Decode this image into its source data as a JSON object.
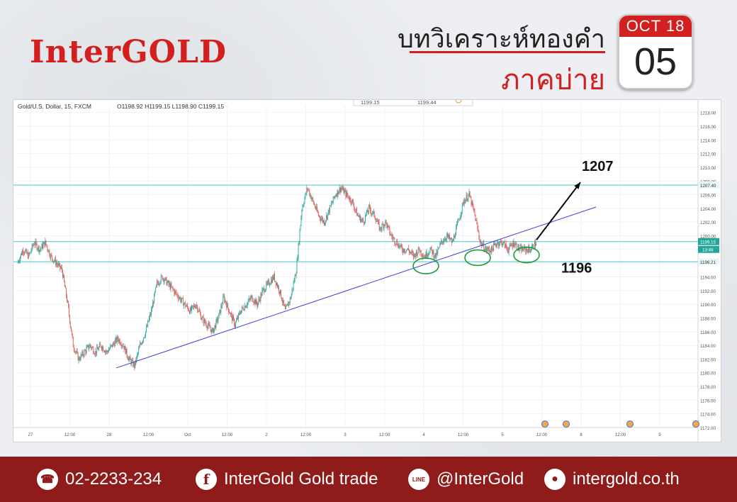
{
  "brand": "InterGOLD",
  "header": {
    "title": "บทวิเคราะห์ทองคำ",
    "subtitle": "ภาคบ่าย",
    "date_month": "OCT 18",
    "date_day": "05"
  },
  "chart_info": {
    "symbol_line": "Gold/U.S. Dollar, 15, FXCM",
    "ohlc": "O1198.92 H1199.15 L1198.90 C1199.15",
    "box_left": "1199.15",
    "box_right": "1199.44",
    "current_price_tag": "1199.15",
    "countdown_tag": "13:49",
    "resistance_tag": "1207.40",
    "support_tag": "1196.21"
  },
  "chart_data": {
    "type": "candlestick",
    "y_axis_ticks": [
      "1218.00",
      "1216.00",
      "1214.00",
      "1212.00",
      "1210.00",
      "1208.00",
      "1206.00",
      "1204.00",
      "1202.00",
      "1200.00",
      "1198.00",
      "1196.00",
      "1194.00",
      "1192.00",
      "1190.00",
      "1188.00",
      "1186.00",
      "1184.00",
      "1182.00",
      "1180.00",
      "1178.00",
      "1176.00",
      "1174.00",
      "1172.00"
    ],
    "ylim": [
      1172,
      1219
    ],
    "x_axis_ticks": [
      "27",
      "12:00",
      "28",
      "12:00",
      "Oct",
      "12:00",
      "2",
      "12:00",
      "3",
      "12:00",
      "4",
      "12:00",
      "5",
      "12:00",
      "8",
      "12:00",
      "9"
    ],
    "price_path": [
      1196,
      1198,
      1197,
      1199,
      1198,
      1199,
      1197,
      1196,
      1195,
      1190,
      1184,
      1182,
      1183,
      1184,
      1183,
      1184,
      1183,
      1184,
      1185,
      1184,
      1182,
      1181,
      1184,
      1186,
      1189,
      1193,
      1194,
      1193,
      1192,
      1191,
      1190,
      1189,
      1190,
      1188,
      1187,
      1186,
      1188,
      1191,
      1189,
      1187,
      1189,
      1190,
      1191,
      1190,
      1192,
      1193,
      1194,
      1192,
      1189,
      1191,
      1195,
      1204,
      1207,
      1205,
      1203,
      1202,
      1204,
      1206,
      1207,
      1206,
      1205,
      1203,
      1202,
      1204,
      1203,
      1201,
      1202,
      1200,
      1199,
      1198,
      1198,
      1197,
      1198,
      1197,
      1198,
      1197,
      1199,
      1200,
      1199,
      1202,
      1205,
      1206,
      1203,
      1199,
      1198,
      1198,
      1199,
      1199,
      1198,
      1199,
      1198,
      1198,
      1198,
      1199
    ],
    "horizontal_levels": [
      1207.4,
      1199.15,
      1196.21
    ],
    "trendline": {
      "from": [
        "28",
        1180.7
      ],
      "to": [
        "5",
        1200.1
      ]
    },
    "annotations": {
      "target": "1207",
      "support": "1196"
    }
  },
  "footer": {
    "phone": "02-2233-234",
    "facebook": "InterGold Gold trade",
    "line": "@InterGold",
    "website": "intergold.co.th",
    "facebook_icon": "f",
    "line_icon": "LINE"
  },
  "colors": {
    "brand_red": "#d21f1f",
    "footer_bg": "#8f1b1b",
    "up_candle": "#26a69a",
    "down_candle": "#ef5350",
    "level_line": "#4fc3c7",
    "trend_line": "#3a3fd1"
  }
}
